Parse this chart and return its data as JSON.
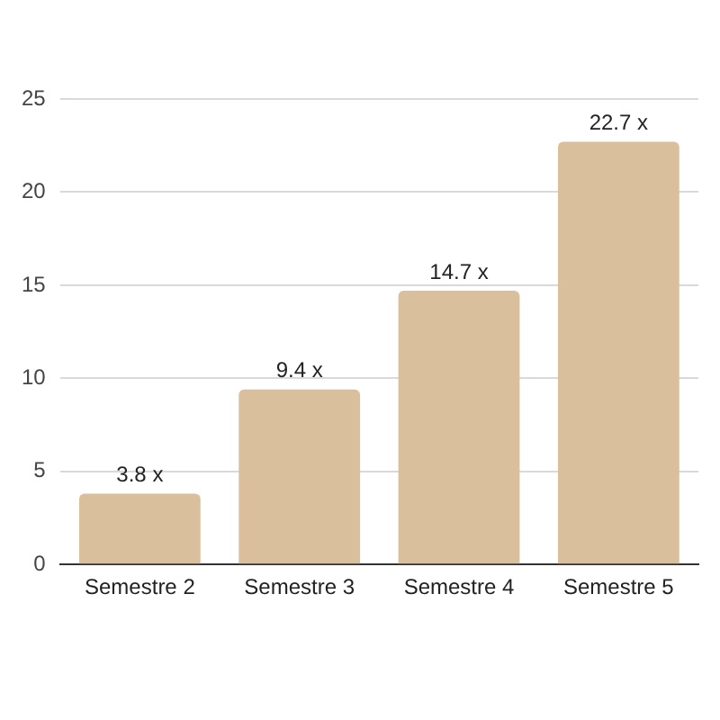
{
  "chart_data": {
    "type": "bar",
    "categories": [
      "Semestre 2",
      "Semestre 3",
      "Semestre 4",
      "Semestre 5"
    ],
    "values": [
      3.8,
      9.4,
      14.7,
      22.7
    ],
    "value_labels": [
      "3.8 x",
      "9.4 x",
      "14.7 x",
      "22.7 x"
    ],
    "color": "#d9bf9b",
    "ylim": [
      0,
      25
    ],
    "yticks": [
      0,
      5,
      10,
      15,
      20,
      25
    ],
    "grid": "y",
    "legend": false
  }
}
